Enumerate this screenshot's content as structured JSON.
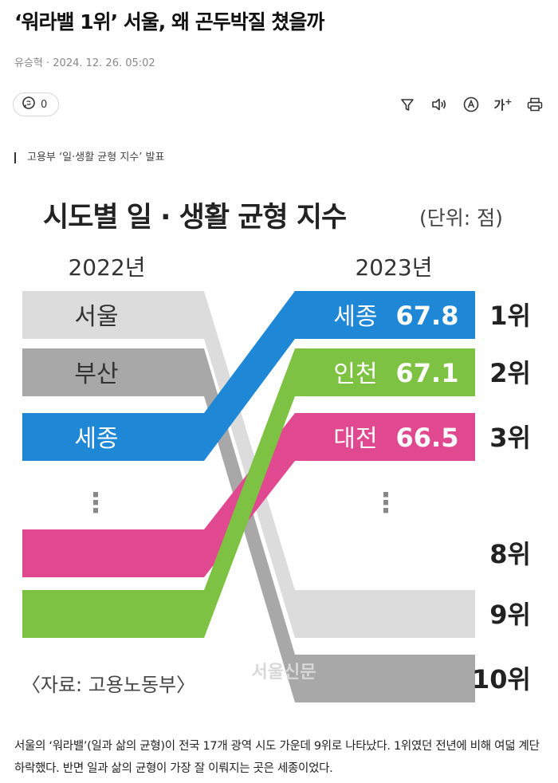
{
  "article": {
    "headline": "‘워라밸 1위’ 서울, 왜 곤두박질 쳤을까",
    "byline": "유승혁 · 2024. 12. 26. 05:02",
    "comment_count": "0",
    "caption": "고용부 ‘일·생활 균형 지수’ 발표",
    "body": "서울의 ‘워라밸’(일과 삶의 균형)이 전국 17개 광역 시도 가운데 9위로 나타났다. 1위였던 전년에 비해 여덟 계단 하락했다. 반면 일과 삶의 균형이 가장 잘 이뤄지는 곳은 세종이었다."
  },
  "toolbar": {
    "icons": [
      "filter-icon",
      "speaker-icon",
      "translate-icon",
      "font-size-icon",
      "print-icon"
    ],
    "font_size_label": "가"
  },
  "chart_data": {
    "type": "slope",
    "title": "시도별 일 · 생활 균형 지수",
    "unit": "(단위: 점)",
    "left_year": "2022년",
    "right_year": "2023년",
    "left_labels": [
      "서울",
      "부산",
      "세종"
    ],
    "right_labels": [
      "세종",
      "인천",
      "대전"
    ],
    "ellipsis": "⋮",
    "ranks": [
      "1위",
      "2위",
      "3위",
      "8위",
      "9위",
      "10위"
    ],
    "series": [
      {
        "name": "세종",
        "rank_2022": 3,
        "rank_2023": 1,
        "value_2023": 67.8,
        "color": "#1e87d6"
      },
      {
        "name": "인천",
        "rank_2022": 9,
        "rank_2023": 2,
        "value_2023": 67.1,
        "color": "#7dc242"
      },
      {
        "name": "대전",
        "rank_2022": 8,
        "rank_2023": 3,
        "value_2023": 66.5,
        "color": "#e0498f"
      },
      {
        "name": "서울",
        "rank_2022": 1,
        "rank_2023": 9,
        "color": "#dcdcdc"
      },
      {
        "name": "부산",
        "rank_2022": 2,
        "rank_2023": 10,
        "color": "#a8a8a8"
      }
    ],
    "source": "〈자료: 고용노동부〉",
    "watermark": "서울신문",
    "colors": {
      "rank_text": "#222222",
      "title_text": "#222222"
    }
  }
}
